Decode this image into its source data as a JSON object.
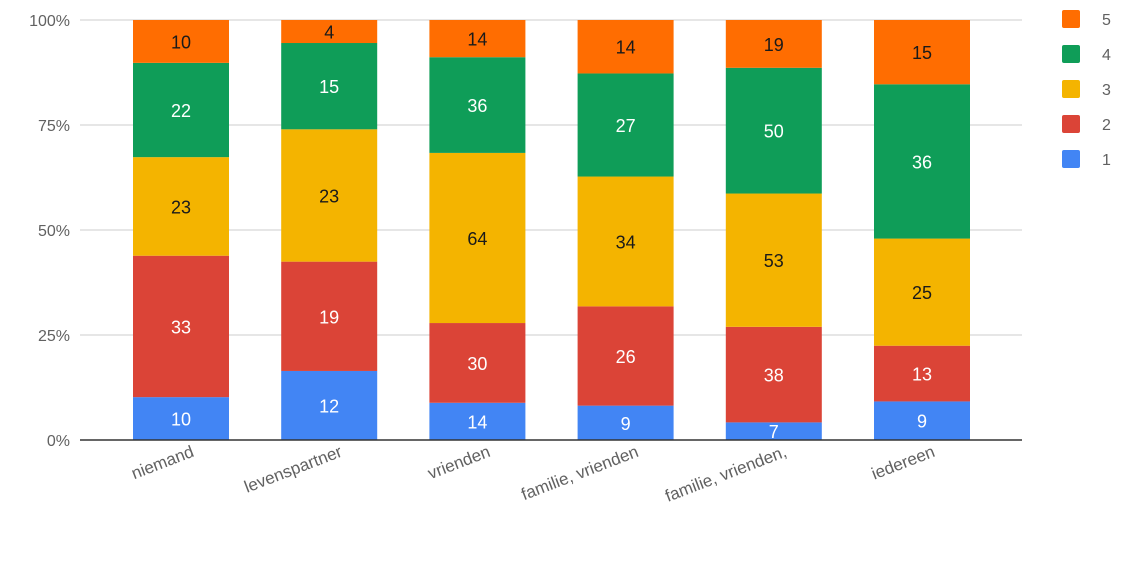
{
  "chart_data": {
    "type": "bar",
    "stacked": true,
    "normalized": true,
    "categories": [
      "niemand",
      "levenspartner",
      "vrienden",
      "familie, vrienden",
      "familie, vrienden,",
      "iedereen"
    ],
    "series": [
      {
        "name": "1",
        "color": "#4285f4",
        "values": [
          10,
          12,
          14,
          9,
          7,
          9
        ]
      },
      {
        "name": "2",
        "color": "#db4437",
        "values": [
          33,
          19,
          30,
          26,
          38,
          13
        ]
      },
      {
        "name": "3",
        "color": "#f4b400",
        "values": [
          23,
          23,
          64,
          34,
          53,
          25
        ]
      },
      {
        "name": "4",
        "color": "#0f9d58",
        "values": [
          22,
          15,
          36,
          27,
          50,
          36
        ]
      },
      {
        "name": "5",
        "color": "#ff6d01",
        "values": [
          10,
          4,
          14,
          14,
          19,
          15
        ]
      }
    ],
    "yticks": [
      "0%",
      "25%",
      "50%",
      "75%",
      "100%"
    ],
    "ylim": [
      0,
      100
    ],
    "grid": true,
    "legend": "right"
  }
}
